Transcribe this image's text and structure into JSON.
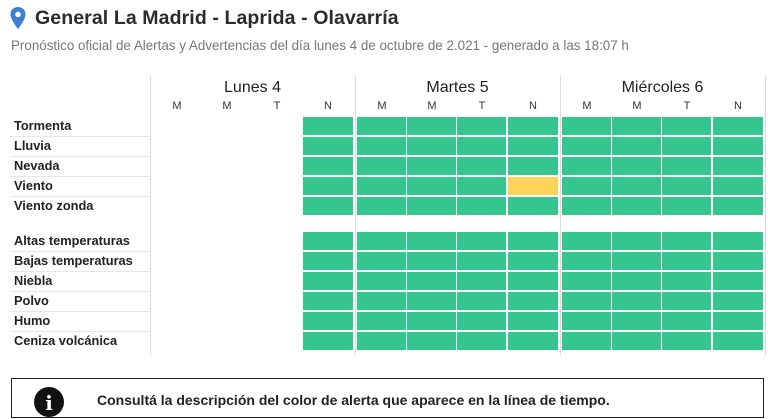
{
  "header": {
    "title": "General La Madrid - Laprida - Olavarría",
    "subtitle": "Pronóstico oficial de Alertas y Advertencias del día lunes 4 de octubre de 2.021 - generado a las 18:07 h"
  },
  "days": [
    {
      "name": "Lunes 4",
      "periods": [
        "M",
        "M",
        "T",
        "N"
      ]
    },
    {
      "name": "Martes 5",
      "periods": [
        "M",
        "M",
        "T",
        "N"
      ]
    },
    {
      "name": "Miércoles 6",
      "periods": [
        "M",
        "M",
        "T",
        "N"
      ]
    }
  ],
  "colors": {
    "green": "#35c690",
    "yellow": "#fdd35a",
    "empty": "#ffffff"
  },
  "groups": [
    {
      "rows": [
        {
          "label": "Tormenta",
          "levels": [
            "none",
            "none",
            "none",
            "green",
            "green",
            "green",
            "green",
            "green",
            "green",
            "green",
            "green",
            "green"
          ]
        },
        {
          "label": "Lluvia",
          "levels": [
            "none",
            "none",
            "none",
            "green",
            "green",
            "green",
            "green",
            "green",
            "green",
            "green",
            "green",
            "green"
          ]
        },
        {
          "label": "Nevada",
          "levels": [
            "none",
            "none",
            "none",
            "green",
            "green",
            "green",
            "green",
            "green",
            "green",
            "green",
            "green",
            "green"
          ]
        },
        {
          "label": "Viento",
          "levels": [
            "none",
            "none",
            "none",
            "green",
            "green",
            "green",
            "green",
            "yellow",
            "green",
            "green",
            "green",
            "green"
          ]
        },
        {
          "label": "Viento zonda",
          "levels": [
            "none",
            "none",
            "none",
            "green",
            "green",
            "green",
            "green",
            "green",
            "green",
            "green",
            "green",
            "green"
          ]
        }
      ]
    },
    {
      "rows": [
        {
          "label": "Altas temperaturas",
          "levels": [
            "none",
            "none",
            "none",
            "green",
            "green",
            "green",
            "green",
            "green",
            "green",
            "green",
            "green",
            "green"
          ]
        },
        {
          "label": "Bajas temperaturas",
          "levels": [
            "none",
            "none",
            "none",
            "green",
            "green",
            "green",
            "green",
            "green",
            "green",
            "green",
            "green",
            "green"
          ]
        },
        {
          "label": "Niebla",
          "levels": [
            "none",
            "none",
            "none",
            "green",
            "green",
            "green",
            "green",
            "green",
            "green",
            "green",
            "green",
            "green"
          ]
        },
        {
          "label": "Polvo",
          "levels": [
            "none",
            "none",
            "none",
            "green",
            "green",
            "green",
            "green",
            "green",
            "green",
            "green",
            "green",
            "green"
          ]
        },
        {
          "label": "Humo",
          "levels": [
            "none",
            "none",
            "none",
            "green",
            "green",
            "green",
            "green",
            "green",
            "green",
            "green",
            "green",
            "green"
          ]
        },
        {
          "label": "Ceniza volcánica",
          "levels": [
            "none",
            "none",
            "none",
            "green",
            "green",
            "green",
            "green",
            "green",
            "green",
            "green",
            "green",
            "green"
          ]
        }
      ]
    }
  ],
  "callout": {
    "icon": "info-icon",
    "text": "Consultá la descripción del color de alerta que aparece en la línea de tiempo."
  }
}
